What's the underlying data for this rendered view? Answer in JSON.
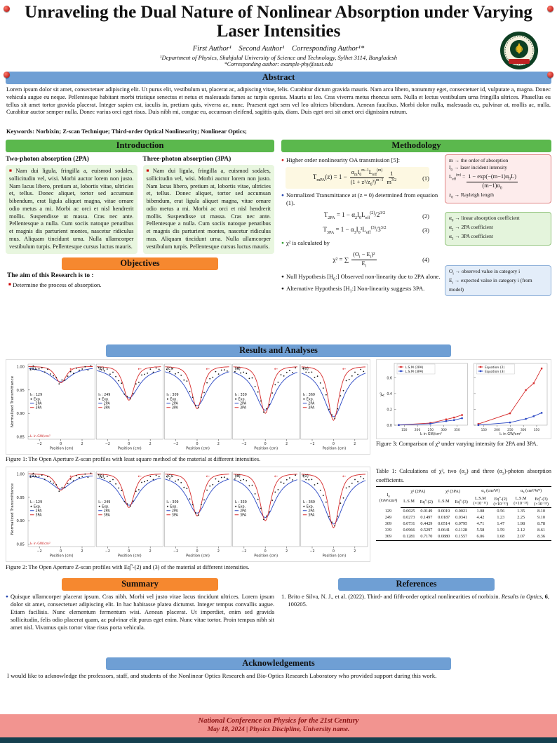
{
  "icons": {
    "bullet_square": "■",
    "bullet_dot": "●"
  },
  "header": {
    "title_line1": "Unraveling the Dual Nature of Nonlinear Absorption under Varying",
    "title_line2": "Laser Intensities",
    "authors": "First Author¹ Second Author¹ Corresponding Author¹*",
    "affiliation": "¹Department of Physics, Shahjalal University of Science and Technology, Sylhet 3114, Bangladesh",
    "corresponding": "*Corresponding author: example-phy@sust.edu"
  },
  "abstract": {
    "header": "Abstract",
    "body": "Lorem ipsum dolor sit amet, consectetuer adipiscing elit. Ut purus elit, vestibulum ut, placerat ac, adipiscing vitae, felis. Curabitur dictum gravida mauris. Nam arcu libero, nonummy eget, consectetuer id, vulputate a, magna. Donec vehicula augue eu neque. Pellentesque habitant morbi tristique senectus et netus et malesuada fames ac turpis egestas. Mauris ut leo. Cras viverra metus rhoncus sem. Nulla et lectus vestibulum urna fringilla ultrices. Phasellus eu tellus sit amet tortor gravida placerat. Integer sapien est, iaculis in, pretium quis, viverra ac, nunc. Praesent eget sem vel leo ultrices bibendum. Aenean faucibus. Morbi dolor nulla, malesuada eu, pulvinar at, mollis ac, nulla. Curabitur auctor semper nulla. Donec varius orci eget risus. Duis nibh mi, congue eu, accumsan eleifend, sagittis quis, diam. Duis eget orci sit amet orci dignissim rutrum.",
    "keywords": "Keywords: Norbixin; Z-scan Technique; Third-order Optical Nonlinearity; Nonlinear Optics;"
  },
  "introduction": {
    "header": "Introduction",
    "col_2pa": {
      "title": "Two-photon absorption (2PA)",
      "body": "Nam dui ligula, fringilla a, euismod sodales, sollicitudin vel, wisi. Morbi auctor lorem non justo. Nam lacus libero, pretium at, lobortis vitae, ultricies et, tellus. Donec aliquet, tortor sed accumsan bibendum, erat ligula aliquet magna, vitae ornare odio metus a mi. Morbi ac orci et nisl hendrerit mollis. Suspendisse ut massa. Cras nec ante. Pellentesque a nulla. Cum sociis natoque penatibus et magnis dis parturient montes, nascetur ridiculus mus. Aliquam tincidunt urna. Nulla ullamcorper vestibulum turpis. Pellentesque cursus luctus mauris."
    },
    "col_3pa": {
      "title": "Three-photon absorption (3PA)",
      "body": "Nam dui ligula, fringilla a, euismod sodales, sollicitudin vel, wisi. Morbi auctor lorem non justo. Nam lacus libero, pretium at, lobortis vitae, ultricies et, tellus. Donec aliquet, tortor sed accumsan bibendum, erat ligula aliquet magna, vitae ornare odio metus a mi. Morbi ac orci et nisl hendrerit mollis. Suspendisse ut massa. Cras nec ante. Pellentesque a nulla. Cum sociis natoque penatibus et magnis dis parturient montes, nascetur ridiculus mus. Aliquam tincidunt urna. Nulla ullamcorper vestibulum turpis. Pellentesque cursus luctus mauris."
    }
  },
  "objectives": {
    "header": "Objectives",
    "lead": "The aim of this Research is to :",
    "item": "Determine the process of absorption."
  },
  "methodology": {
    "header": "Methodology",
    "bullet1": "Higher order nonlinearity OA transmission [5]:",
    "eq1": {
      "lhs": "T<sub>mPA</sub>(z) = 1 −",
      "num": "α<sub>m</sub>I<sub>0</sub><sup>m−1</sup>L<sub>eff</sub><sup>(m)</sup>",
      "den": "(1 + z²/z<sub>0</sub>²)<sup>m−1</sup>",
      "num2": "1",
      "den2": "m<sup>3/2</sup>",
      "no": "(1)"
    },
    "bullet2": "Normalized Transmittance at (z = 0) determined from equation (1).",
    "eq2": {
      "body": "T<sub>2PA</sub> = 1 − α<sub>2</sub>I<sub>0</sub>L<sub>eff</sub><sup>(2)</sup>/2<sup>3/2</sup>",
      "no": "(2)"
    },
    "eq3": {
      "body": "T<sub>3PA</sub> = 1 − α<sub>3</sub>I<sub>0</sub>²L<sub>eff</sub><sup>(3)</sup>/3<sup>3/2</sup>",
      "no": "(3)"
    },
    "bullet3": "χ² is calculated by",
    "eq4": {
      "lhs": "χ² = ∑",
      "num": "(O<sub>i</sub> − E<sub>i</sub>)²",
      "den": "E<sub>i</sub>",
      "no": "(4)"
    },
    "bullet4": "Null Hypothesis [H<sub>0</sub>:] Observed non-linearity due to 2PA alone.",
    "bullet5": "Alternative Hypothesis [H<sub>1</sub>:] Non-linearity suggests 3PA.",
    "box_m": {
      "line1": "m → the order of absorption",
      "line2": "I<sub>0</sub> → laser incident intensity",
      "line3": "L<sub>eff</sub><sup>(m)</sup> = <span class='frac'><span class='num'>1 − exp(−(m−1)α<sub>0</sub>L)</span><span>(m−1)α<sub>0</sub></span></span>",
      "line4": "z<sub>0</sub> → Rayleigh length"
    },
    "box_alpha": {
      "line1": "α<sub>0</sub> → linear absorption coefficient",
      "line2": "α<sub>2</sub> → 2PA coefficient",
      "line3": "α<sub>3</sub> → 3PA coefficient"
    },
    "box_oi": {
      "line1": "O<sub>i</sub> → observed value in category i",
      "line2": "E<sub>i</sub> → expected value in category i (from model)"
    }
  },
  "results": {
    "header": "Results and Analyses",
    "fig1_caption": "Figure 1: The Open Aperture Z-scan profiles with least square method of the material at different intensities.",
    "fig2_caption": "Figure 2: The Open Aperture Z-scan profiles with Eq<sup>n</sup>-(2) and (3) of the material at different intensities.",
    "fig3_caption": "Figure 3: Comparison of χ² under varying intensity for 2PA and 3PA."
  },
  "summary": {
    "header": "Summary",
    "body": "Quisque ullamcorper placerat ipsum. Cras nibh. Morbi vel justo vitae lacus tincidunt ultrices. Lorem ipsum dolor sit amet, consectetuer adipiscing elit. In hac habitasse platea dictumst. Integer tempus convallis augue. Etiam facilisis. Nunc elementum fermentum wisi. Aenean placerat. Ut imperdiet, enim sed gravida sollicitudin, felis odio placerat quam, ac pulvinar elit purus eget enim. Nunc vitae tortor. Proin tempus nibh sit amet nisl. Vivamus quis tortor vitae risus porta vehicula."
  },
  "references": {
    "header": "References",
    "num1": "1.",
    "item1": "Brito e Silva, N. J., et al. (2022). Third- and fifth-order optical nonlinearities of norbixin. <i>Results in Optics</i>, <b>6</b>, 100205."
  },
  "acknowledgements": {
    "header": "Acknowledgements",
    "body": "I would like to acknowledge the professors, staff, and students of the Nonlinear Optics Research and Bio-Optics Research Laboratory who provided support during this work."
  },
  "footer": {
    "line1": "National Conference on Physics for the 21st Century",
    "line2": "May 18, 2024  | Physics Discipline, University name."
  },
  "chart_data": [
    {
      "id": "figure1",
      "type": "line",
      "kind": "zscan",
      "title": "Open Aperture Z-scan profiles (least square method)",
      "xlabel": "Position (cm)",
      "ylabel": "Normalized Transmittance",
      "xlim": [
        -3,
        3
      ],
      "ylim": [
        0.845,
        1.005
      ],
      "xticks": [
        -2,
        0,
        2
      ],
      "yticks": [
        1.0,
        0.95,
        0.9,
        0.85
      ],
      "legend": [
        "Exp.",
        "2PA",
        "3PA"
      ],
      "i0_prefix": "I₀ :",
      "i0_units": "I₀ in GW/cm²",
      "arrow": "←",
      "colors": {
        "exp": "#1a1a1a",
        "pa2": "#2a47c4",
        "pa3": "#d62b2b"
      },
      "panels": [
        {
          "label": "(a)",
          "I0": "129",
          "dip": 0.035
        },
        {
          "label": "(b)",
          "I0": "249",
          "dip": 0.072
        },
        {
          "label": "(c)",
          "I0": "309",
          "dip": 0.09
        },
        {
          "label": "(d)",
          "I0": "339",
          "dip": 0.1
        },
        {
          "label": "(e)",
          "I0": "369",
          "dip": 0.115
        }
      ]
    },
    {
      "id": "figure2",
      "type": "line",
      "kind": "zscan",
      "title": "Open Aperture Z-scan profiles with Eqn-(2) and (3)",
      "xlabel": "Position (cm)",
      "ylabel": "Normalized Transmittance",
      "xlim": [
        -3,
        3
      ],
      "ylim": [
        0.845,
        1.005
      ],
      "xticks": [
        -2,
        0,
        2
      ],
      "yticks": [
        1.0,
        0.95,
        0.9,
        0.85
      ],
      "legend": [
        "Exp.",
        "2PA",
        "3PA"
      ],
      "i0_prefix": "I₀ :",
      "i0_units": "I₀ in GW/cm²",
      "arrow": "←",
      "colors": {
        "exp": "#1a1a1a",
        "pa2": "#2a47c4",
        "pa3": "#d62b2b"
      },
      "panels": [
        {
          "label": "(a)",
          "I0": "129",
          "dip": 0.035
        },
        {
          "label": "(b)",
          "I0": "249",
          "dip": 0.072
        },
        {
          "label": "(c)",
          "I0": "309",
          "dip": 0.09
        },
        {
          "label": "(d)",
          "I0": "339",
          "dip": 0.1
        },
        {
          "label": "(e)",
          "I0": "369",
          "dip": 0.115
        }
      ]
    },
    {
      "id": "figure3",
      "type": "line",
      "kind": "chi2",
      "title": "Comparison of χ² under varying intensity for 2PA and 3PA",
      "x": [
        129,
        249,
        309,
        339,
        369
      ],
      "xticks": [
        150,
        200,
        250,
        300,
        350
      ],
      "yticks": [
        0,
        0.2,
        0.4,
        0.6
      ],
      "ylim": [
        0,
        0.78
      ],
      "xlabel": "I₀ in GW/cm²",
      "ylabel": "χ²",
      "subplots": [
        {
          "series": [
            {
              "name": "L.S.M (2PA)",
              "color": "#d62b2b",
              "values": [
                0.0025,
                0.0273,
                0.0731,
                0.0966,
                0.1281
              ]
            },
            {
              "name": "L.S.M (3PA)",
              "color": "#2a47c4",
              "values": [
                0.0019,
                0.0187,
                0.0514,
                0.0641,
                0.088
              ]
            }
          ]
        },
        {
          "series": [
            {
              "name": "Equation (2)",
              "color": "#d62b2b",
              "values": [
                0.0149,
                0.1497,
                0.4429,
                0.5297,
                0.717
              ]
            },
            {
              "name": "Equation (3)",
              "color": "#2a47c4",
              "values": [
                0.0021,
                0.0341,
                0.0795,
                0.1128,
                0.1557
              ]
            }
          ]
        }
      ]
    },
    {
      "id": "table1",
      "type": "table",
      "caption": "Table 1: Calculations of χ², two (α<sub>2</sub>) and three (α<sub>3</sub>)-photon absorption coefficients.",
      "col0": {
        "l1": "I<sub>0</sub>",
        "l2": "(GW/cm²)"
      },
      "groups": [
        "χ² (2PA)",
        "χ² (3PA)",
        "α<sub>2</sub> (cm/W)",
        "α<sub>3</sub> (cm³/W²)"
      ],
      "subheads": [
        {
          "l1": "L.S.M"
        },
        {
          "l1": "Eq<sup>n</sup>-(2)"
        },
        {
          "l1": "L.S.M"
        },
        {
          "l1": "Eq<sup>n</sup>-(3)"
        },
        {
          "l1": "L.S.M",
          "l2": "(×10⁻¹¹)"
        },
        {
          "l1": "Eq<sup>n</sup>-(2)",
          "l2": "(×10⁻¹¹)"
        },
        {
          "l1": "L.S.M",
          "l2": "(×10⁻¹³)"
        },
        {
          "l1": "Eq<sup>n</sup>-(3)",
          "l2": "(×10⁻¹³)"
        }
      ],
      "rows": [
        [
          "129",
          "0.0025",
          "0.0149",
          "0.0019",
          "0.0021",
          "1.08",
          "0.56",
          "1.35",
          "8.10"
        ],
        [
          "249",
          "0.0273",
          "0.1497",
          "0.0187",
          "0.0341",
          "4.42",
          "1.23",
          "2.25",
          "9.10"
        ],
        [
          "309",
          "0.0731",
          "0.4429",
          "0.0514",
          "0.0795",
          "4.71",
          "1.47",
          "1.98",
          "8.78"
        ],
        [
          "339",
          "0.0966",
          "0.5297",
          "0.0641",
          "0.1128",
          "5.58",
          "1.59",
          "2.12",
          "8.61"
        ],
        [
          "369",
          "0.1281",
          "0.7170",
          "0.0880",
          "0.1557",
          "6.06",
          "1.68",
          "2.07",
          "8.36"
        ]
      ]
    }
  ]
}
